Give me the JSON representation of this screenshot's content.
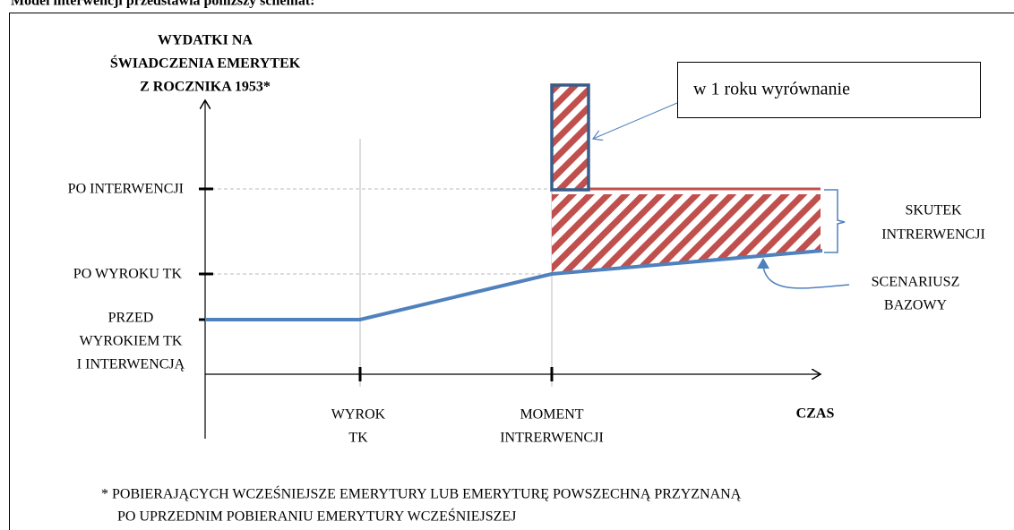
{
  "heading": "Model interwencji przedstawia poniższy schemat:",
  "y_axis_title": [
    "WYDATKI NA",
    "ŚWIADCZENIA EMERYTEK",
    "Z ROCZNIKA 1953*"
  ],
  "y_labels": {
    "after_intervention": "PO INTERWENCJI",
    "after_ruling": "PO WYROKU TK",
    "before": [
      "PRZED",
      "WYROKIEM TK",
      "I INTERWENCJĄ"
    ]
  },
  "x_labels": {
    "ruling": [
      "WYROK",
      "TK"
    ],
    "intervention": [
      "MOMENT",
      "INTRERWENCJI"
    ],
    "time": "CZAS"
  },
  "callout": "w 1 roku wyrównanie",
  "effect": [
    "SKUTEK",
    "INTRERWENCJI"
  ],
  "baseline": [
    "SCENARIUSZ",
    "BAZOWY"
  ],
  "footnote": [
    "* POBIERAJĄCYCH WCZEŚNIEJSZE EMERYTURY LUB EMERYTURĘ POWSZECHNĄ PRZYZNANĄ",
    "PO UPRZEDNIM POBIERANIU EMERYTURY WCZEŚNIEJSZEJ"
  ]
}
